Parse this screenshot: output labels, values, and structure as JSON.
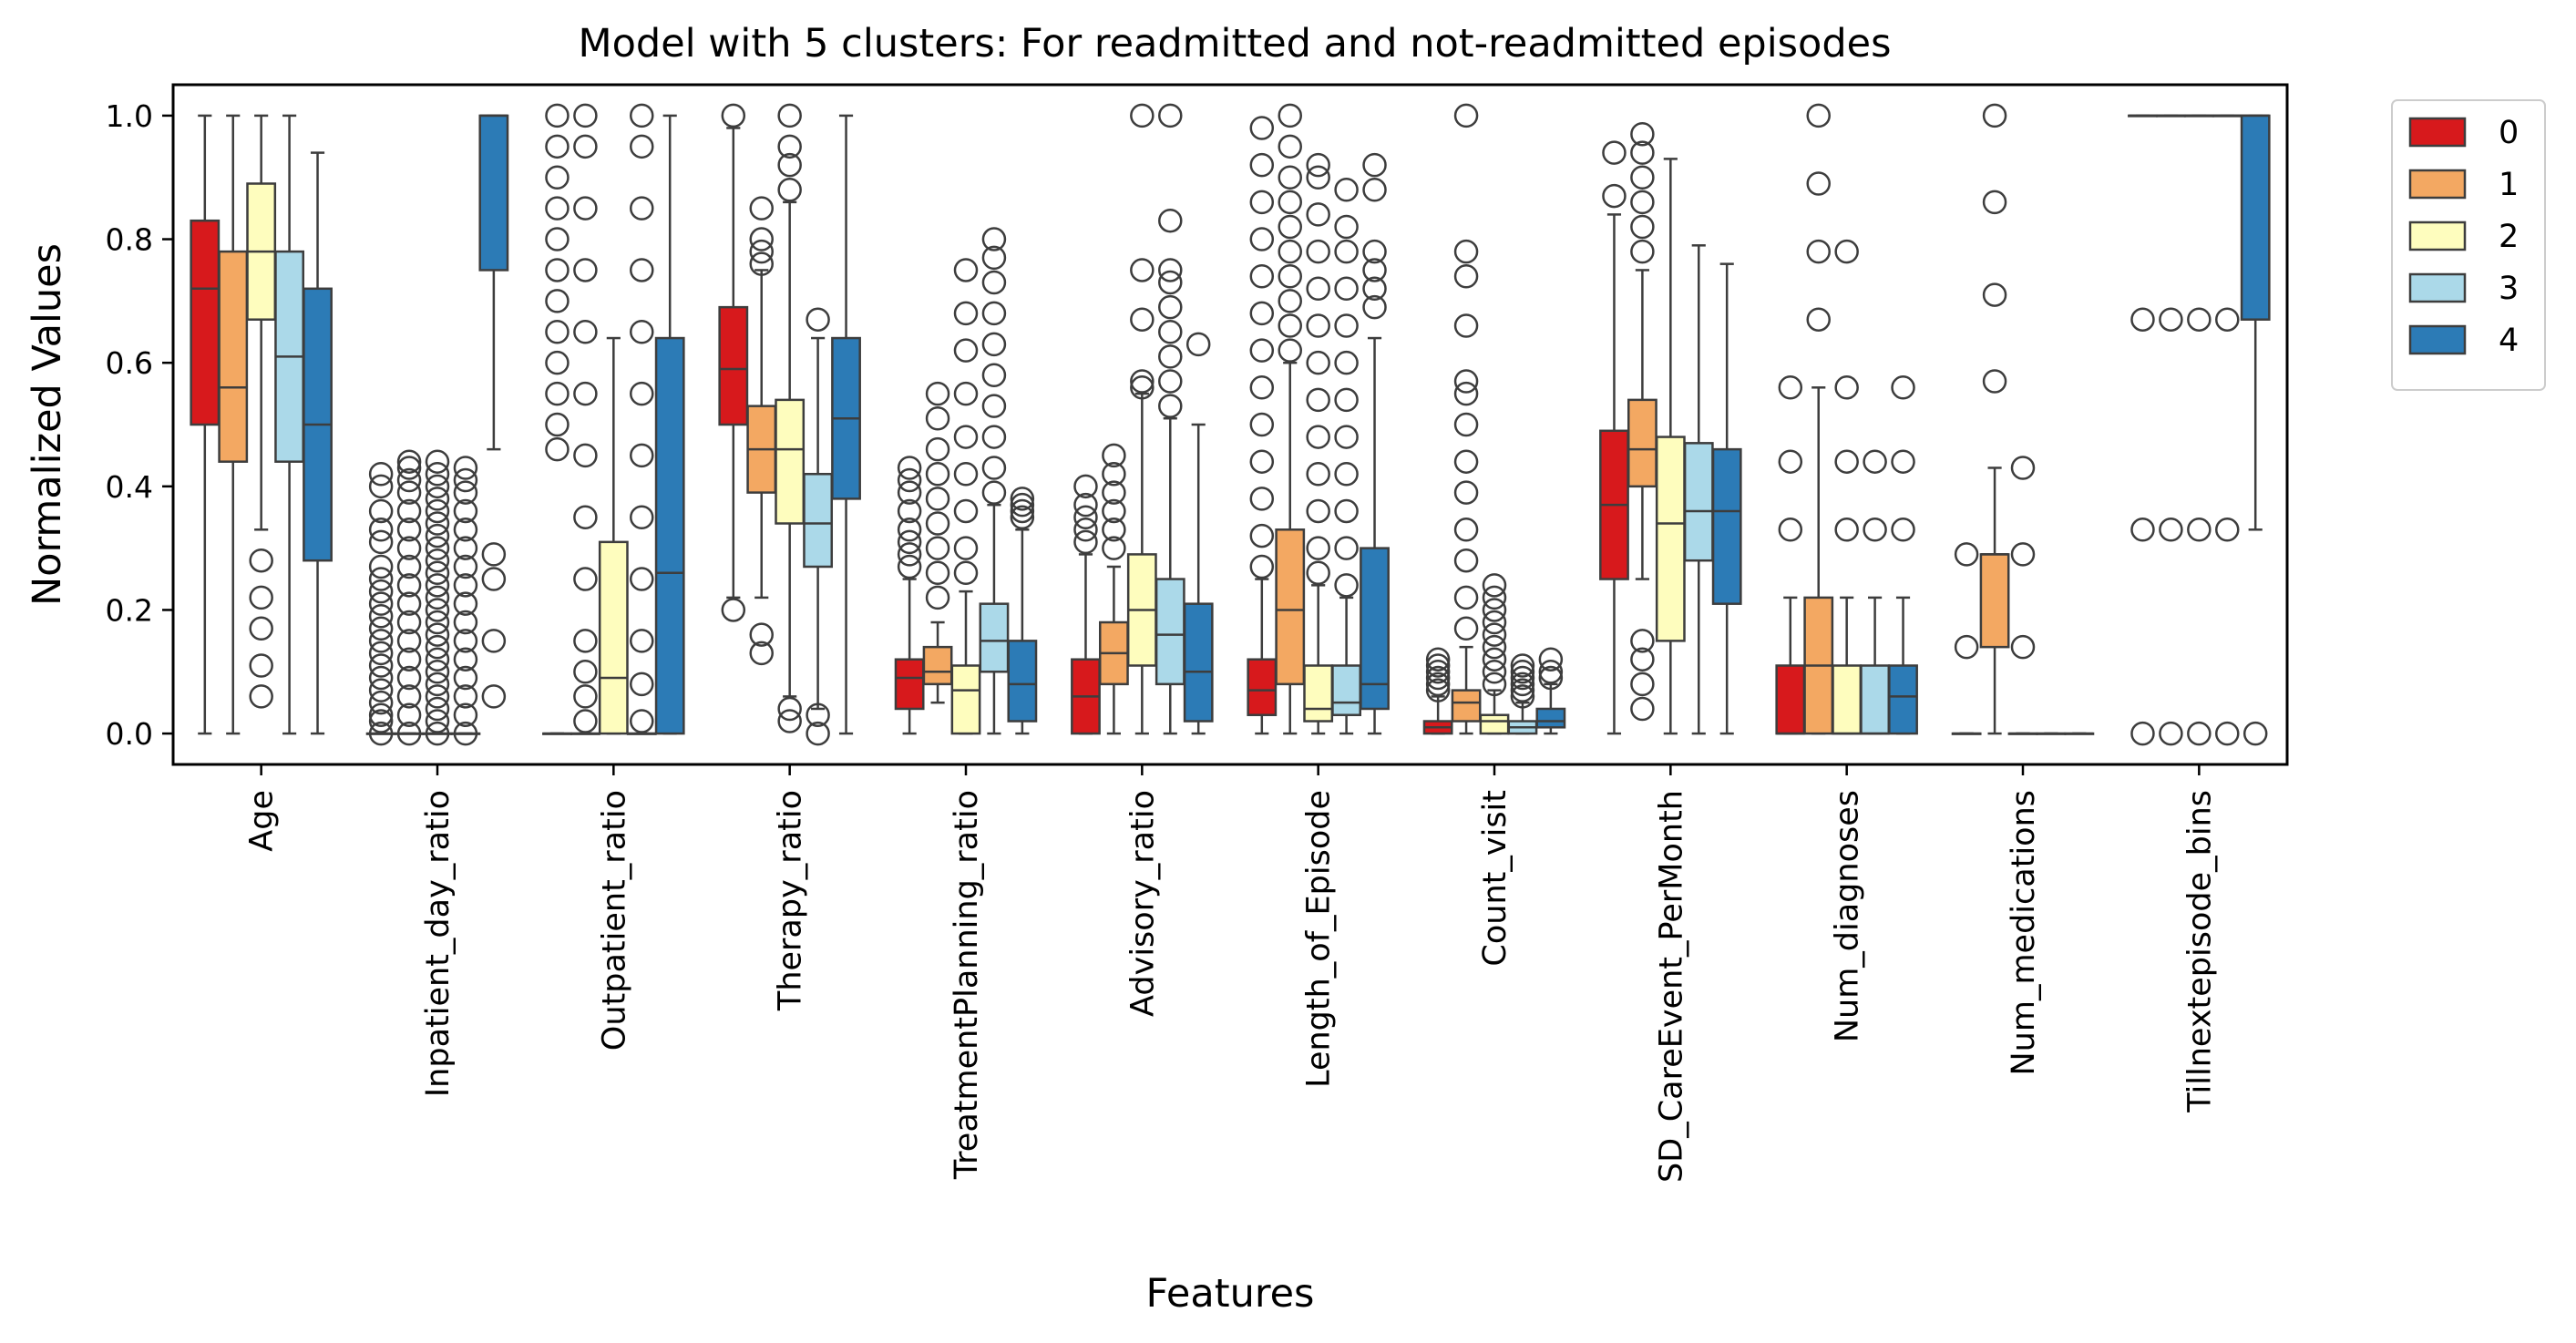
{
  "chart_data": {
    "type": "box",
    "title": "Model with 5 clusters: For readmitted and not-readmitted episodes",
    "xlabel": "Features",
    "ylabel": "Normalized Values",
    "ylim": [
      -0.05,
      1.05
    ],
    "yticks": [
      "0.0",
      "0.2",
      "0.4",
      "0.6",
      "0.8",
      "1.0"
    ],
    "legend": {
      "position": "outside-top-right",
      "entries": [
        "0",
        "1",
        "2",
        "3",
        "4"
      ]
    },
    "colors": [
      "#d7191c",
      "#f3a862",
      "#fefdbe",
      "#abd9e9",
      "#2c7bb6"
    ],
    "categories": [
      "Age",
      "Inpatient_day_ratio",
      "Outpatient_ratio",
      "Therapy_ratio",
      "TreatmentPlanning_ratio",
      "Advisory_ratio",
      "Length_of_Episode",
      "Count_visit",
      "SD_CareEvent_PerMonth",
      "Num_diagnoses",
      "Num_medications",
      "Tillnextepisode_bins"
    ],
    "series": [
      {
        "name": "0",
        "boxes": [
          {
            "q1": 0.5,
            "median": 0.72,
            "q3": 0.83,
            "low": 0.0,
            "high": 1.0,
            "outliers": []
          },
          {
            "q1": 0.0,
            "median": 0.0,
            "q3": 0.0,
            "low": 0.0,
            "high": 0.0,
            "outliers": [
              0.0,
              0.02,
              0.03,
              0.05,
              0.07,
              0.09,
              0.11,
              0.13,
              0.15,
              0.17,
              0.19,
              0.21,
              0.23,
              0.25,
              0.27,
              0.31,
              0.33,
              0.36,
              0.4,
              0.42
            ]
          },
          {
            "q1": 0.0,
            "median": 0.0,
            "q3": 0.0,
            "low": 0.0,
            "high": 0.0,
            "outliers": [
              0.46,
              0.5,
              0.55,
              0.6,
              0.65,
              0.7,
              0.75,
              0.8,
              0.85,
              0.9,
              0.95,
              1.0
            ]
          },
          {
            "q1": 0.5,
            "median": 0.59,
            "q3": 0.69,
            "low": 0.22,
            "high": 0.98,
            "outliers": [
              0.2,
              1.0
            ]
          },
          {
            "q1": 0.04,
            "median": 0.09,
            "q3": 0.12,
            "low": 0.0,
            "high": 0.25,
            "outliers": [
              0.27,
              0.29,
              0.31,
              0.33,
              0.36,
              0.39,
              0.41,
              0.43
            ]
          },
          {
            "q1": 0.0,
            "median": 0.06,
            "q3": 0.12,
            "low": 0.0,
            "high": 0.29,
            "outliers": [
              0.31,
              0.33,
              0.35,
              0.37,
              0.4
            ]
          },
          {
            "q1": 0.03,
            "median": 0.07,
            "q3": 0.12,
            "low": 0.0,
            "high": 0.25,
            "outliers": [
              0.27,
              0.32,
              0.38,
              0.44,
              0.5,
              0.56,
              0.62,
              0.68,
              0.74,
              0.8,
              0.86,
              0.92,
              0.98
            ]
          },
          {
            "q1": 0.0,
            "median": 0.01,
            "q3": 0.02,
            "low": 0.0,
            "high": 0.06,
            "outliers": [
              0.07,
              0.08,
              0.09,
              0.1,
              0.11,
              0.12
            ]
          },
          {
            "q1": 0.25,
            "median": 0.37,
            "q3": 0.49,
            "low": 0.0,
            "high": 0.84,
            "outliers": [
              0.87,
              0.94
            ]
          },
          {
            "q1": 0.0,
            "median": 0.0,
            "q3": 0.11,
            "low": 0.0,
            "high": 0.22,
            "outliers": [
              0.33,
              0.44,
              0.56
            ]
          },
          {
            "q1": 0.0,
            "median": 0.0,
            "q3": 0.0,
            "low": 0.0,
            "high": 0.0,
            "outliers": [
              0.14,
              0.29
            ]
          },
          {
            "q1": 1.0,
            "median": 1.0,
            "q3": 1.0,
            "low": 1.0,
            "high": 1.0,
            "outliers": [
              0.0,
              0.33,
              0.67
            ]
          }
        ]
      },
      {
        "name": "1",
        "boxes": [
          {
            "q1": 0.44,
            "median": 0.56,
            "q3": 0.78,
            "low": 0.0,
            "high": 1.0,
            "outliers": []
          },
          {
            "q1": 0.0,
            "median": 0.0,
            "q3": 0.0,
            "low": 0.0,
            "high": 0.0,
            "outliers": [
              0.0,
              0.03,
              0.06,
              0.09,
              0.12,
              0.15,
              0.18,
              0.21,
              0.24,
              0.27,
              0.3,
              0.33,
              0.36,
              0.39,
              0.41,
              0.43,
              0.44
            ]
          },
          {
            "q1": 0.0,
            "median": 0.0,
            "q3": 0.0,
            "low": 0.0,
            "high": 0.0,
            "outliers": [
              0.02,
              0.06,
              0.1,
              0.15,
              0.25,
              0.35,
              0.45,
              0.55,
              0.65,
              0.75,
              0.85,
              0.95,
              1.0
            ]
          },
          {
            "q1": 0.39,
            "median": 0.46,
            "q3": 0.53,
            "low": 0.22,
            "high": 0.75,
            "outliers": [
              0.13,
              0.16,
              0.76,
              0.78,
              0.8,
              0.85
            ]
          },
          {
            "q1": 0.08,
            "median": 0.1,
            "q3": 0.14,
            "low": 0.05,
            "high": 0.18,
            "outliers": [
              0.22,
              0.26,
              0.3,
              0.34,
              0.38,
              0.42,
              0.46,
              0.51,
              0.55
            ]
          },
          {
            "q1": 0.08,
            "median": 0.13,
            "q3": 0.18,
            "low": 0.0,
            "high": 0.27,
            "outliers": [
              0.3,
              0.33,
              0.36,
              0.39,
              0.42,
              0.45
            ]
          },
          {
            "q1": 0.08,
            "median": 0.2,
            "q3": 0.33,
            "low": 0.0,
            "high": 0.6,
            "outliers": [
              0.62,
              0.66,
              0.7,
              0.74,
              0.78,
              0.82,
              0.86,
              0.9,
              0.95,
              1.0
            ]
          },
          {
            "q1": 0.02,
            "median": 0.05,
            "q3": 0.07,
            "low": 0.0,
            "high": 0.14,
            "outliers": [
              0.17,
              0.22,
              0.28,
              0.33,
              0.39,
              0.44,
              0.5,
              0.55,
              0.57,
              0.66,
              0.74,
              0.78,
              1.0
            ]
          },
          {
            "q1": 0.4,
            "median": 0.46,
            "q3": 0.54,
            "low": 0.25,
            "high": 0.75,
            "outliers": [
              0.04,
              0.08,
              0.12,
              0.15,
              0.78,
              0.82,
              0.86,
              0.9,
              0.94,
              0.97
            ]
          },
          {
            "q1": 0.0,
            "median": 0.11,
            "q3": 0.22,
            "low": 0.0,
            "high": 0.56,
            "outliers": [
              0.67,
              0.78,
              0.89,
              1.0
            ]
          },
          {
            "q1": 0.14,
            "median": 0.29,
            "q3": 0.29,
            "low": 0.0,
            "high": 0.43,
            "outliers": [
              0.57,
              0.71,
              0.86,
              1.0
            ]
          },
          {
            "q1": 1.0,
            "median": 1.0,
            "q3": 1.0,
            "low": 1.0,
            "high": 1.0,
            "outliers": [
              0.0,
              0.33,
              0.67
            ]
          }
        ]
      },
      {
        "name": "2",
        "boxes": [
          {
            "q1": 0.67,
            "median": 0.78,
            "q3": 0.89,
            "low": 0.33,
            "high": 1.0,
            "outliers": [
              0.06,
              0.11,
              0.17,
              0.22,
              0.28
            ]
          },
          {
            "q1": 0.0,
            "median": 0.0,
            "q3": 0.0,
            "low": 0.0,
            "high": 0.0,
            "outliers": [
              0.0,
              0.02,
              0.04,
              0.06,
              0.08,
              0.1,
              0.12,
              0.14,
              0.16,
              0.18,
              0.2,
              0.22,
              0.24,
              0.26,
              0.28,
              0.3,
              0.32,
              0.34,
              0.36,
              0.38,
              0.4,
              0.42,
              0.44
            ]
          },
          {
            "q1": 0.0,
            "median": 0.09,
            "q3": 0.31,
            "low": 0.0,
            "high": 0.64,
            "outliers": []
          },
          {
            "q1": 0.34,
            "median": 0.46,
            "q3": 0.54,
            "low": 0.06,
            "high": 0.86,
            "outliers": [
              0.02,
              0.04,
              0.88,
              0.92,
              0.95,
              1.0
            ]
          },
          {
            "q1": 0.0,
            "median": 0.07,
            "q3": 0.11,
            "low": 0.0,
            "high": 0.23,
            "outliers": [
              0.26,
              0.3,
              0.36,
              0.42,
              0.48,
              0.55,
              0.62,
              0.68,
              0.75
            ]
          },
          {
            "q1": 0.11,
            "median": 0.2,
            "q3": 0.29,
            "low": 0.0,
            "high": 0.55,
            "outliers": [
              0.56,
              0.57,
              0.67,
              0.75,
              1.0
            ]
          },
          {
            "q1": 0.02,
            "median": 0.04,
            "q3": 0.11,
            "low": 0.0,
            "high": 0.24,
            "outliers": [
              0.26,
              0.3,
              0.36,
              0.42,
              0.48,
              0.54,
              0.6,
              0.66,
              0.72,
              0.78,
              0.84,
              0.9,
              0.92
            ]
          },
          {
            "q1": 0.0,
            "median": 0.02,
            "q3": 0.03,
            "low": 0.0,
            "high": 0.07,
            "outliers": [
              0.08,
              0.1,
              0.12,
              0.14,
              0.16,
              0.18,
              0.2,
              0.22,
              0.24
            ]
          },
          {
            "q1": 0.15,
            "median": 0.34,
            "q3": 0.48,
            "low": 0.0,
            "high": 0.93,
            "outliers": []
          },
          {
            "q1": 0.0,
            "median": 0.0,
            "q3": 0.11,
            "low": 0.0,
            "high": 0.22,
            "outliers": [
              0.33,
              0.44,
              0.56,
              0.78
            ]
          },
          {
            "q1": 0.0,
            "median": 0.0,
            "q3": 0.0,
            "low": 0.0,
            "high": 0.0,
            "outliers": [
              0.14,
              0.29,
              0.43
            ]
          },
          {
            "q1": 1.0,
            "median": 1.0,
            "q3": 1.0,
            "low": 1.0,
            "high": 1.0,
            "outliers": [
              0.0,
              0.33,
              0.67
            ]
          }
        ]
      },
      {
        "name": "3",
        "boxes": [
          {
            "q1": 0.44,
            "median": 0.61,
            "q3": 0.78,
            "low": 0.0,
            "high": 1.0,
            "outliers": []
          },
          {
            "q1": 0.0,
            "median": 0.0,
            "q3": 0.0,
            "low": 0.0,
            "high": 0.0,
            "outliers": [
              0.0,
              0.03,
              0.06,
              0.09,
              0.12,
              0.15,
              0.18,
              0.21,
              0.24,
              0.27,
              0.3,
              0.33,
              0.36,
              0.39,
              0.41,
              0.43
            ]
          },
          {
            "q1": 0.0,
            "median": 0.0,
            "q3": 0.0,
            "low": 0.0,
            "high": 0.0,
            "outliers": [
              0.02,
              0.08,
              0.15,
              0.25,
              0.35,
              0.45,
              0.55,
              0.65,
              0.75,
              0.85,
              0.95,
              1.0
            ]
          },
          {
            "q1": 0.27,
            "median": 0.34,
            "q3": 0.42,
            "low": 0.04,
            "high": 0.64,
            "outliers": [
              0.0,
              0.03,
              0.67
            ]
          },
          {
            "q1": 0.1,
            "median": 0.15,
            "q3": 0.21,
            "low": 0.0,
            "high": 0.37,
            "outliers": [
              0.39,
              0.43,
              0.48,
              0.53,
              0.58,
              0.63,
              0.68,
              0.73,
              0.77,
              0.8
            ]
          },
          {
            "q1": 0.08,
            "median": 0.16,
            "q3": 0.25,
            "low": 0.0,
            "high": 0.51,
            "outliers": [
              0.53,
              0.57,
              0.61,
              0.65,
              0.69,
              0.73,
              0.75,
              0.83,
              1.0
            ]
          },
          {
            "q1": 0.03,
            "median": 0.05,
            "q3": 0.11,
            "low": 0.0,
            "high": 0.22,
            "outliers": [
              0.24,
              0.3,
              0.36,
              0.42,
              0.48,
              0.54,
              0.6,
              0.66,
              0.72,
              0.78,
              0.82,
              0.88
            ]
          },
          {
            "q1": 0.0,
            "median": 0.01,
            "q3": 0.02,
            "low": 0.0,
            "high": 0.05,
            "outliers": [
              0.06,
              0.07,
              0.08,
              0.09,
              0.1,
              0.11
            ]
          },
          {
            "q1": 0.28,
            "median": 0.36,
            "q3": 0.47,
            "low": 0.0,
            "high": 0.79,
            "outliers": []
          },
          {
            "q1": 0.0,
            "median": 0.0,
            "q3": 0.11,
            "low": 0.0,
            "high": 0.22,
            "outliers": [
              0.33,
              0.44
            ]
          },
          {
            "q1": 0.0,
            "median": 0.0,
            "q3": 0.0,
            "low": 0.0,
            "high": 0.0,
            "outliers": []
          },
          {
            "q1": 1.0,
            "median": 1.0,
            "q3": 1.0,
            "low": 1.0,
            "high": 1.0,
            "outliers": [
              0.0,
              0.33,
              0.67
            ]
          }
        ]
      },
      {
        "name": "4",
        "boxes": [
          {
            "q1": 0.28,
            "median": 0.5,
            "q3": 0.72,
            "low": 0.0,
            "high": 0.94,
            "outliers": []
          },
          {
            "q1": 0.75,
            "median": 1.0,
            "q3": 1.0,
            "low": 0.46,
            "high": 1.0,
            "outliers": [
              0.06,
              0.15,
              0.25,
              0.29
            ]
          },
          {
            "q1": 0.0,
            "median": 0.26,
            "q3": 0.64,
            "low": 0.0,
            "high": 1.0,
            "outliers": []
          },
          {
            "q1": 0.38,
            "median": 0.51,
            "q3": 0.64,
            "low": 0.0,
            "high": 1.0,
            "outliers": []
          },
          {
            "q1": 0.02,
            "median": 0.08,
            "q3": 0.15,
            "low": 0.0,
            "high": 0.33,
            "outliers": [
              0.35,
              0.36,
              0.37,
              0.38
            ]
          },
          {
            "q1": 0.02,
            "median": 0.1,
            "q3": 0.21,
            "low": 0.0,
            "high": 0.5,
            "outliers": [
              0.63
            ]
          },
          {
            "q1": 0.04,
            "median": 0.08,
            "q3": 0.3,
            "low": 0.0,
            "high": 0.64,
            "outliers": [
              0.69,
              0.72,
              0.75,
              0.78,
              0.88,
              0.92
            ]
          },
          {
            "q1": 0.01,
            "median": 0.02,
            "q3": 0.04,
            "low": 0.0,
            "high": 0.08,
            "outliers": [
              0.09,
              0.1,
              0.12
            ]
          },
          {
            "q1": 0.21,
            "median": 0.36,
            "q3": 0.46,
            "low": 0.0,
            "high": 0.76,
            "outliers": []
          },
          {
            "q1": 0.0,
            "median": 0.06,
            "q3": 0.11,
            "low": 0.0,
            "high": 0.22,
            "outliers": [
              0.33,
              0.44,
              0.56
            ]
          },
          {
            "q1": 0.0,
            "median": 0.0,
            "q3": 0.0,
            "low": 0.0,
            "high": 0.0,
            "outliers": []
          },
          {
            "q1": 0.67,
            "median": 1.0,
            "q3": 1.0,
            "low": 0.33,
            "high": 1.0,
            "outliers": [
              0.0
            ]
          }
        ]
      }
    ]
  }
}
